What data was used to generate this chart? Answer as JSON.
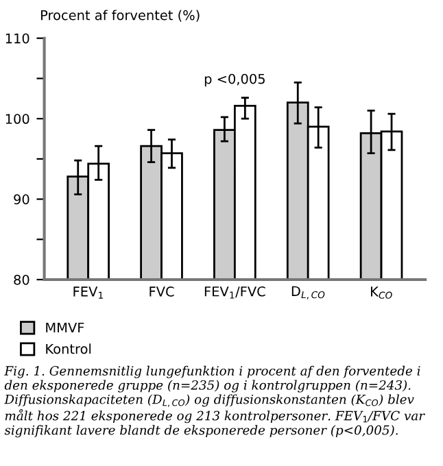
{
  "chart_data": {
    "type": "bar",
    "ylabel": "Procent af forventet (%)",
    "categories": [
      "FEV$_{1}$",
      "FVC",
      "FEV$_{1}$/FVC",
      "D$_{L,CO}$",
      "K$_{CO}$"
    ],
    "series": [
      {
        "name": "MMVF",
        "color": "#cccccc",
        "values": [
          92.8,
          96.6,
          98.6,
          102,
          98.2
        ],
        "errors": [
          [
            90.6,
            94.8
          ],
          [
            94.6,
            98.6
          ],
          [
            97.2,
            100.2
          ],
          [
            99.4,
            104.5
          ],
          [
            95.7,
            101
          ]
        ]
      },
      {
        "name": "Kontrol",
        "color": "#ffffff",
        "values": [
          94.4,
          95.7,
          101.6,
          99,
          98.4
        ],
        "errors": [
          [
            92.4,
            96.6
          ],
          [
            93.9,
            97.4
          ],
          [
            100,
            102.6
          ],
          [
            96.4,
            101.4
          ],
          [
            96.1,
            100.6
          ]
        ]
      }
    ],
    "ylim": [
      80,
      110
    ],
    "yticks": [
      80,
      {
        "value": 85,
        "label": null
      },
      90,
      {
        "value": 95,
        "label": null
      },
      100,
      {
        "value": 105,
        "label": null
      },
      110
    ],
    "grid": false,
    "legend": "bottom left",
    "annotations": [
      "p <0,005",
      "Fig. 1. Gennemsnitlig lungefunktion i procent af den forventede i den eksponerede gruppe (n=235) og i kontrolgruppen (n=243). Diffusionskapaciteten (D$_{L,CO}$) og diffusionskonstanten (K$_{CO}$) blev målt hos 221 eksponerede og 213 kontrolpersoner. FEV$_{1}$/FVC var signifikant lavere blandt de eksponerede personer (p<0,005)."
    ]
  }
}
